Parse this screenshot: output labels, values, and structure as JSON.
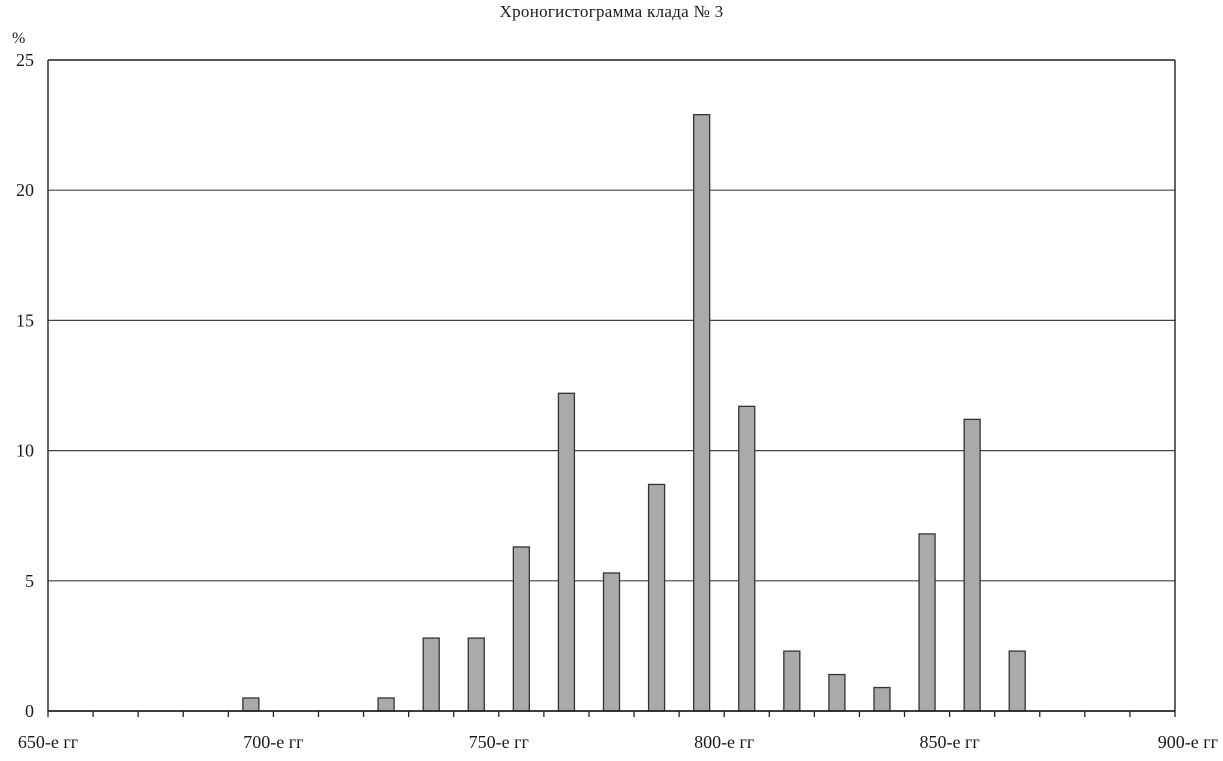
{
  "chart_data": {
    "type": "bar",
    "title": "Хроногистограмма клада № 3",
    "ylabel": "%",
    "xlabel": "",
    "ylim": [
      0,
      25
    ],
    "yticks": [
      0,
      5,
      10,
      15,
      20,
      25
    ],
    "xlim": [
      650,
      900
    ],
    "xtick_labels": [
      {
        "x": 650,
        "label": "650-е гг"
      },
      {
        "x": 700,
        "label": "700-е гг"
      },
      {
        "x": 750,
        "label": "750-е гг"
      },
      {
        "x": 800,
        "label": "800-е гг"
      },
      {
        "x": 850,
        "label": "850-е гг"
      },
      {
        "x": 900,
        "label": "900-е гг"
      }
    ],
    "bars": [
      {
        "x": 695,
        "value": 0.5
      },
      {
        "x": 725,
        "value": 0.5
      },
      {
        "x": 735,
        "value": 2.8
      },
      {
        "x": 745,
        "value": 2.8
      },
      {
        "x": 755,
        "value": 6.3
      },
      {
        "x": 765,
        "value": 12.2
      },
      {
        "x": 775,
        "value": 5.3
      },
      {
        "x": 785,
        "value": 8.7
      },
      {
        "x": 795,
        "value": 22.9
      },
      {
        "x": 805,
        "value": 11.7
      },
      {
        "x": 815,
        "value": 2.3
      },
      {
        "x": 825,
        "value": 1.4
      },
      {
        "x": 835,
        "value": 0.9
      },
      {
        "x": 845,
        "value": 6.8
      },
      {
        "x": 855,
        "value": 11.2
      },
      {
        "x": 865,
        "value": 2.3
      }
    ],
    "grid": true,
    "colors": {
      "bar_fill": "#aaaaaa",
      "bar_stroke": "#333333",
      "grid": "#444444",
      "axis": "#222222"
    }
  }
}
